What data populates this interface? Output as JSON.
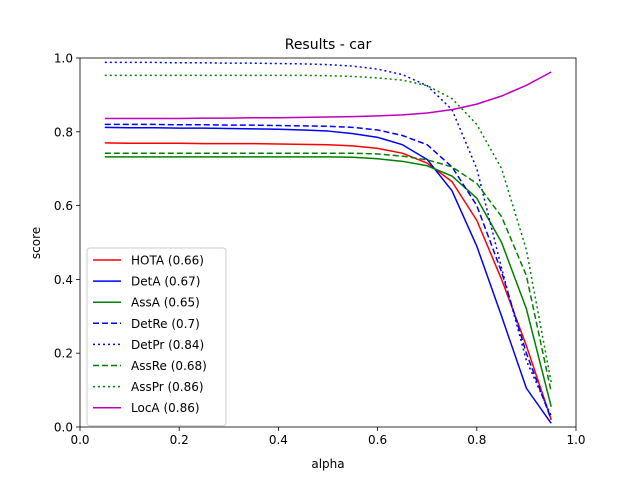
{
  "chart_data": {
    "type": "line",
    "title": "Results - car",
    "xlabel": "alpha",
    "ylabel": "score",
    "xlim": [
      0.0,
      1.0
    ],
    "ylim": [
      0.0,
      1.0
    ],
    "xticks": [
      "0.0",
      "0.2",
      "0.4",
      "0.6",
      "0.8",
      "1.0"
    ],
    "yticks": [
      "0.0",
      "0.2",
      "0.4",
      "0.6",
      "0.8",
      "1.0"
    ],
    "grid": false,
    "legend_position": "lower-left",
    "x": [
      0.05,
      0.1,
      0.15,
      0.2,
      0.25,
      0.3,
      0.35,
      0.4,
      0.45,
      0.5,
      0.55,
      0.6,
      0.65,
      0.7,
      0.75,
      0.8,
      0.85,
      0.9,
      0.95
    ],
    "series": [
      {
        "name": "HOTA (0.66)",
        "color": "#ff0000",
        "style": "solid",
        "values": [
          0.77,
          0.769,
          0.769,
          0.769,
          0.768,
          0.768,
          0.768,
          0.767,
          0.766,
          0.765,
          0.762,
          0.755,
          0.742,
          0.715,
          0.665,
          0.56,
          0.4,
          0.22,
          0.02
        ]
      },
      {
        "name": "DetA (0.67)",
        "color": "#0000ff",
        "style": "solid",
        "values": [
          0.812,
          0.811,
          0.811,
          0.81,
          0.81,
          0.809,
          0.808,
          0.807,
          0.805,
          0.802,
          0.795,
          0.785,
          0.765,
          0.725,
          0.64,
          0.49,
          0.3,
          0.105,
          0.01
        ]
      },
      {
        "name": "AssA (0.65)",
        "color": "#008000",
        "style": "solid",
        "values": [
          0.732,
          0.732,
          0.732,
          0.732,
          0.732,
          0.732,
          0.732,
          0.732,
          0.732,
          0.732,
          0.731,
          0.727,
          0.72,
          0.708,
          0.68,
          0.62,
          0.5,
          0.32,
          0.055
        ]
      },
      {
        "name": "DetRe (0.7)",
        "color": "#0000ff",
        "style": "dashed",
        "values": [
          0.82,
          0.82,
          0.82,
          0.819,
          0.819,
          0.818,
          0.818,
          0.817,
          0.816,
          0.815,
          0.812,
          0.805,
          0.79,
          0.765,
          0.705,
          0.6,
          0.42,
          0.2,
          0.02
        ]
      },
      {
        "name": "DetPr (0.84)",
        "color": "#0000ff",
        "style": "dotted",
        "values": [
          0.988,
          0.988,
          0.988,
          0.987,
          0.987,
          0.986,
          0.986,
          0.985,
          0.984,
          0.982,
          0.978,
          0.97,
          0.955,
          0.925,
          0.86,
          0.7,
          0.43,
          0.18,
          0.03
        ]
      },
      {
        "name": "AssRe (0.68)",
        "color": "#008000",
        "style": "dashed",
        "values": [
          0.742,
          0.742,
          0.742,
          0.742,
          0.742,
          0.742,
          0.742,
          0.742,
          0.742,
          0.742,
          0.742,
          0.74,
          0.734,
          0.724,
          0.705,
          0.66,
          0.57,
          0.41,
          0.095
        ]
      },
      {
        "name": "AssPr (0.86)",
        "color": "#008000",
        "style": "dotted",
        "values": [
          0.953,
          0.953,
          0.953,
          0.953,
          0.953,
          0.953,
          0.953,
          0.953,
          0.953,
          0.952,
          0.95,
          0.946,
          0.94,
          0.925,
          0.89,
          0.82,
          0.7,
          0.48,
          0.12
        ]
      },
      {
        "name": "LocA (0.86)",
        "color": "#bf00bf",
        "style": "solid",
        "values": [
          0.836,
          0.836,
          0.836,
          0.836,
          0.837,
          0.837,
          0.838,
          0.838,
          0.839,
          0.84,
          0.841,
          0.843,
          0.846,
          0.851,
          0.86,
          0.875,
          0.897,
          0.926,
          0.962
        ]
      }
    ]
  }
}
